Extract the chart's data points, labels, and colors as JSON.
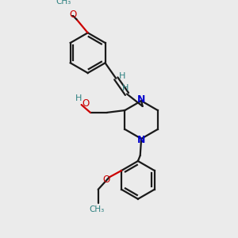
{
  "bg_color": "#ebebeb",
  "bond_color": "#1a1a1a",
  "nitrogen_color": "#0000cc",
  "oxygen_color": "#cc0000",
  "label_color": "#2d8080",
  "figsize": [
    3.0,
    3.0
  ],
  "dpi": 100,
  "xlim": [
    0,
    10
  ],
  "ylim": [
    0,
    10
  ]
}
